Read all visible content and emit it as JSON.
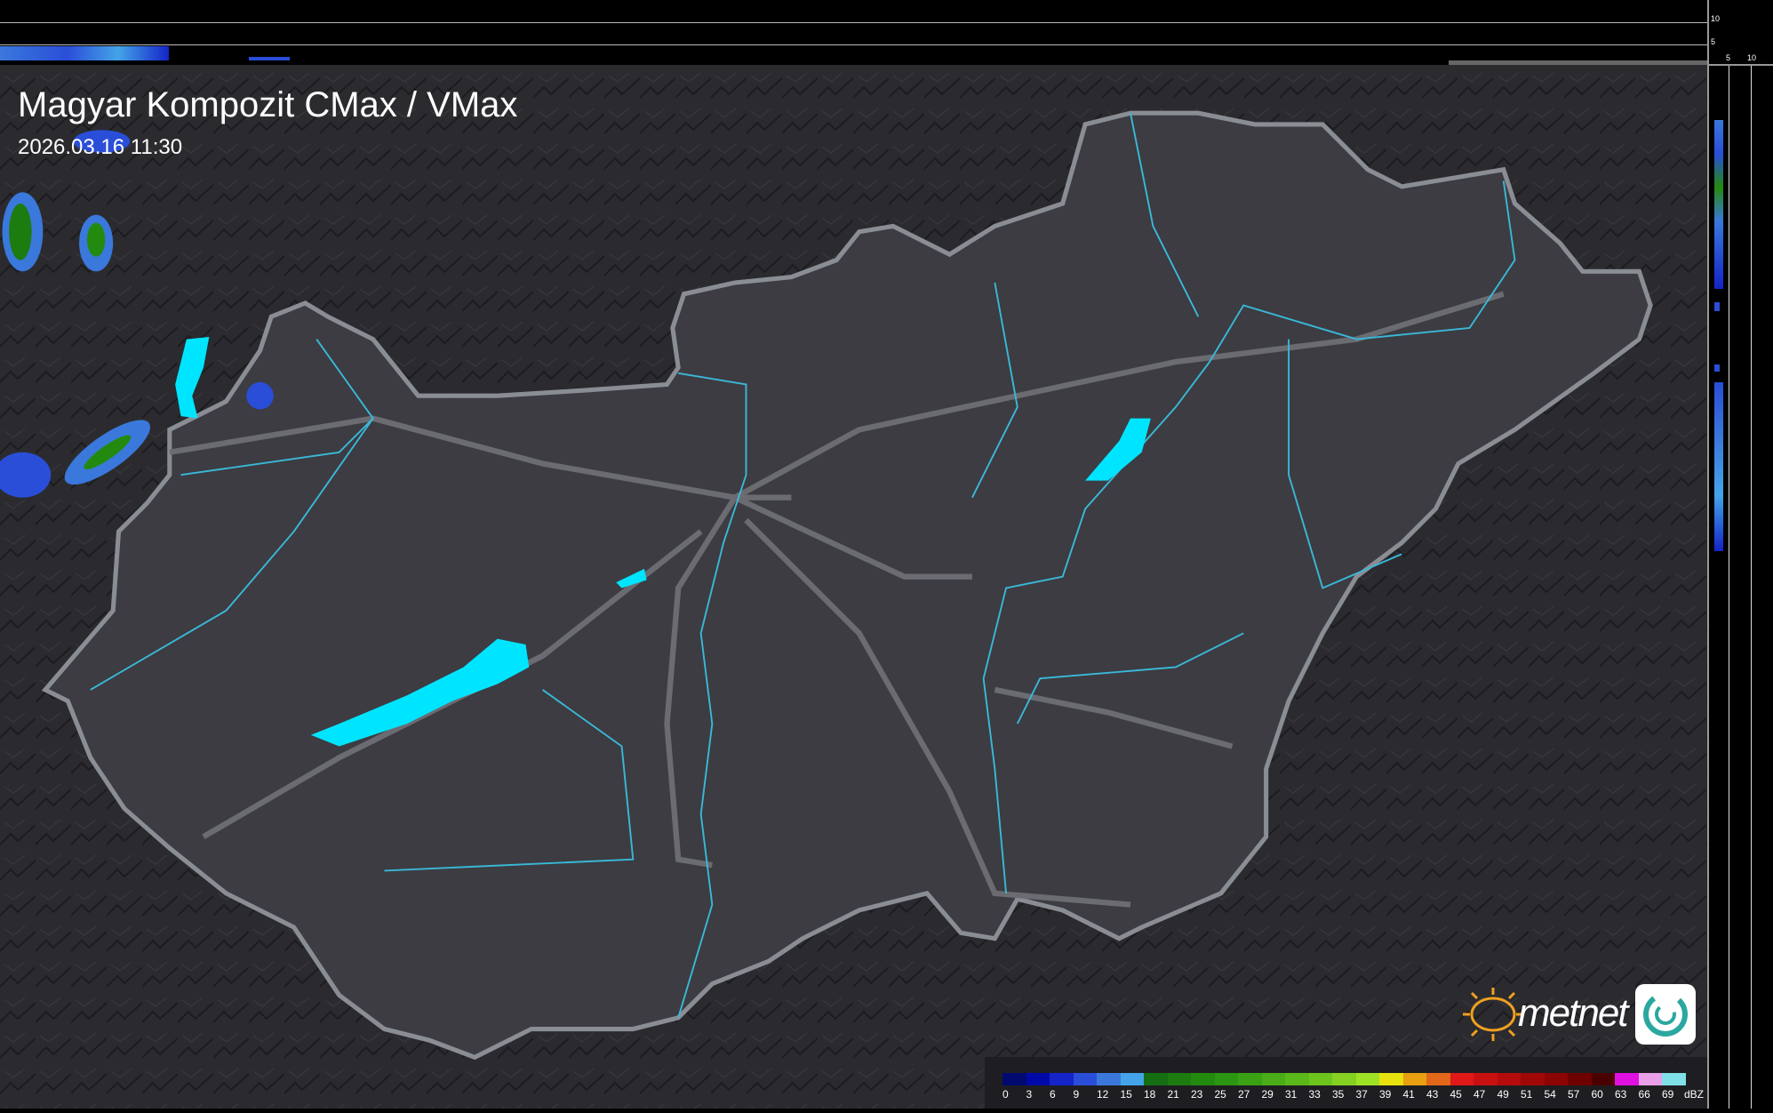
{
  "title": "Magyar Kompozit CMax / VMax",
  "timestamp": "2026.03.16 11:30",
  "side_scale": {
    "vertical_ticks": [
      "10",
      "5"
    ],
    "horizontal_ticks": [
      "5",
      "10"
    ]
  },
  "legend": {
    "unit": "dBZ",
    "labels": [
      "0",
      "3",
      "6",
      "9",
      "12",
      "15",
      "18",
      "21",
      "23",
      "25",
      "27",
      "29",
      "31",
      "33",
      "35",
      "37",
      "39",
      "41",
      "43",
      "45",
      "47",
      "49",
      "51",
      "54",
      "57",
      "60",
      "63",
      "66",
      "69"
    ],
    "colors": [
      "#000a6e",
      "#0009a8",
      "#1424c8",
      "#2a4ed8",
      "#3a78dc",
      "#44a4e8",
      "#156e12",
      "#1c7c10",
      "#238a10",
      "#2c9612",
      "#3aa014",
      "#4aac16",
      "#5ab81a",
      "#6cc41c",
      "#86d022",
      "#9ee226",
      "#e8e20e",
      "#e8a010",
      "#e06818",
      "#e01818",
      "#c81010",
      "#b40c0c",
      "#a00808",
      "#8c0404",
      "#6e0000",
      "#4a0000",
      "#e010e0",
      "#e8a0e8",
      "#80e0e8"
    ]
  },
  "logo": {
    "text": "metnet",
    "accent": "#f0a020"
  },
  "colors": {
    "lakes": "#00e5ff",
    "rivers": "#3ab8d8",
    "border": "#8a8e94"
  }
}
